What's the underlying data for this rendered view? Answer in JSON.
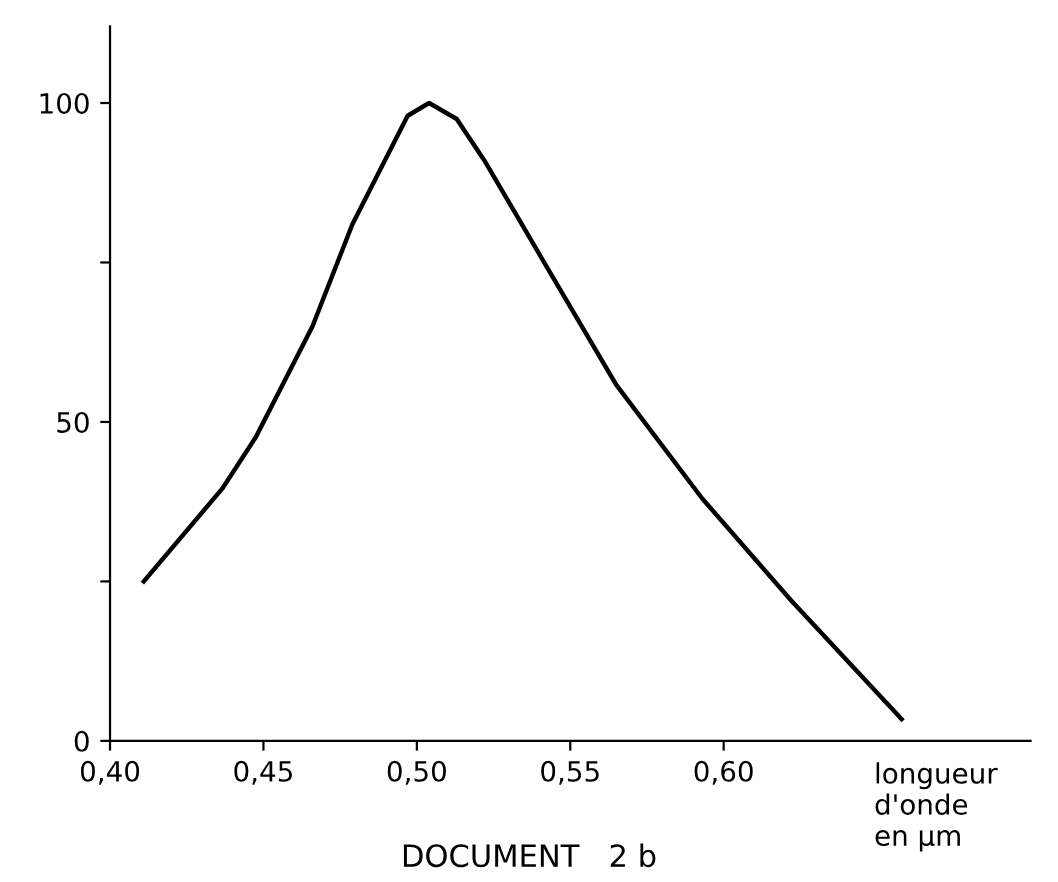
{
  "chart_data": {
    "type": "line",
    "xlabel": "longueur\nd'onde\nen µm",
    "annotations": [
      "DOCUMENT   2 b"
    ],
    "series": [
      {
        "color": "#000000",
        "x": [
          0.411,
          0.4365,
          0.4475,
          0.466,
          0.479,
          0.497,
          0.504,
          0.513,
          0.522,
          0.542,
          0.565,
          0.593,
          0.622,
          0.658
        ],
        "values": [
          25,
          39.5,
          47.6,
          65,
          81,
          98,
          100,
          97.5,
          91,
          74.6,
          55.8,
          38,
          22,
          3.4
        ]
      }
    ],
    "xlim": [
      0.4,
      0.7
    ],
    "ylim": [
      0,
      112
    ],
    "xticks": [
      {
        "value": 0.4,
        "label": "0,40"
      },
      {
        "value": 0.45,
        "label": "0,45"
      },
      {
        "value": 0.5,
        "label": "0,50"
      },
      {
        "value": 0.55,
        "label": "0,55"
      },
      {
        "value": 0.6,
        "label": "0,60"
      }
    ],
    "yticks": [
      0,
      {
        "value": 25,
        "label": null
      },
      50,
      {
        "value": 75,
        "label": null
      },
      100
    ],
    "grid": false,
    "legend": false,
    "marker": "none",
    "line_style": "solid"
  }
}
